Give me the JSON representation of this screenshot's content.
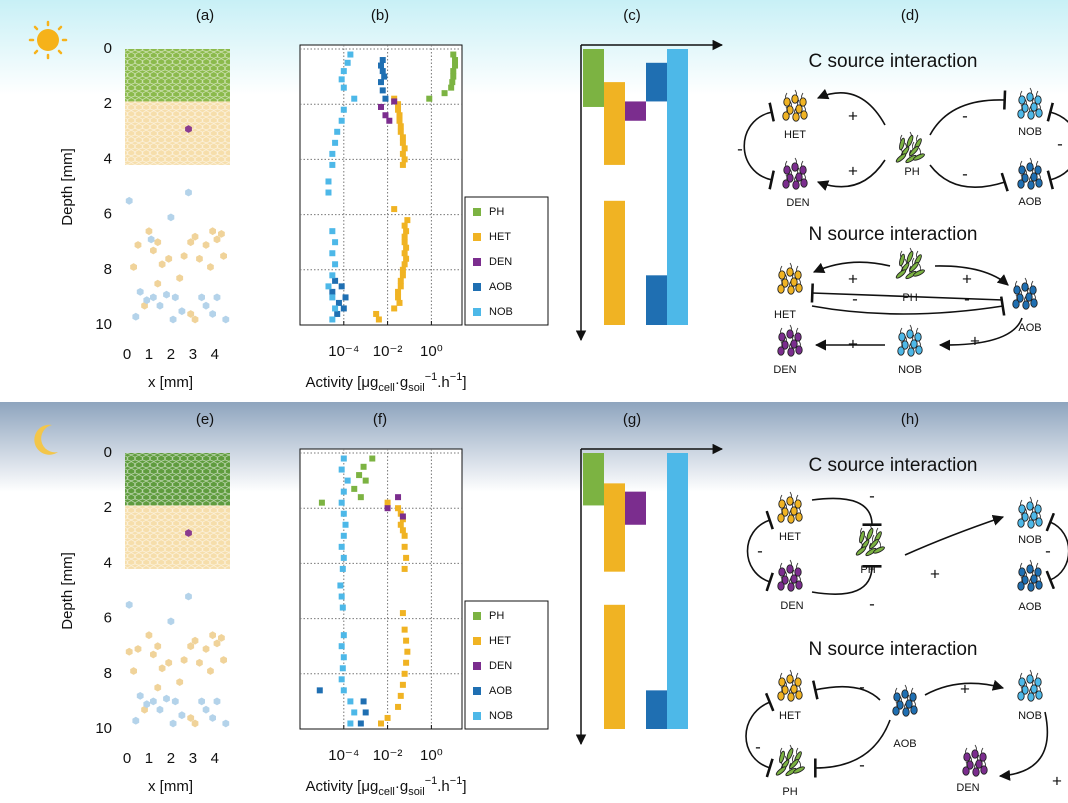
{
  "chart_data": [
    {
      "type": "hexmap",
      "title": "(a)",
      "xlabel": "x [mm]",
      "ylabel": "Depth [mm]",
      "xlim": [
        0,
        4.6
      ],
      "ylim": [
        0,
        10
      ],
      "y_inverted": true,
      "xticks": [
        0,
        1,
        2,
        3,
        4
      ],
      "yticks": [
        0,
        2,
        4,
        6,
        8,
        10
      ],
      "zones": [
        {
          "color": "#8bba4c",
          "from": 0,
          "to": 1.9
        },
        {
          "color": "#f6deab",
          "from": 1.9,
          "to": 4.2
        }
      ],
      "series": [
        {
          "color": "#f0d39a",
          "x": [
            0.3,
            0.5,
            1.0,
            1.2,
            1.4,
            1.6,
            1.9,
            2.4,
            2.6,
            2.9,
            3.1,
            3.3,
            3.6,
            3.9,
            4.1,
            4.3,
            4.4,
            3.8,
            2.9,
            3.1,
            1.4,
            0.8
          ],
          "y": [
            7.9,
            7.1,
            6.6,
            7.3,
            7.0,
            7.8,
            7.6,
            8.3,
            7.5,
            7.0,
            6.8,
            7.6,
            7.1,
            6.6,
            6.9,
            6.7,
            7.5,
            7.9,
            9.6,
            9.8,
            8.5,
            9.3
          ]
        },
        {
          "color": "#b4d3ea",
          "x": [
            0.1,
            0.6,
            0.9,
            1.2,
            1.5,
            1.8,
            2.2,
            2.5,
            3.4,
            3.6,
            3.9,
            4.1,
            0.4,
            2.8,
            2.1,
            4.5,
            2.0,
            1.1
          ],
          "y": [
            5.5,
            8.8,
            9.1,
            9.0,
            9.3,
            8.9,
            9.0,
            9.5,
            9.0,
            9.3,
            9.6,
            9.0,
            9.7,
            5.2,
            9.8,
            9.8,
            6.1,
            6.9
          ]
        },
        {
          "color": "#8a3b8f",
          "x": [
            2.8
          ],
          "y": [
            2.9
          ]
        }
      ]
    },
    {
      "type": "scatter",
      "title": "(b)",
      "xlabel": [
        "Activity [μg",
        "cell",
        "·g",
        "soil",
        "−1",
        ".h",
        "−1",
        "]"
      ],
      "xscale": "log",
      "xlim": [
        1e-06,
        25
      ],
      "ylim": [
        0,
        10
      ],
      "y_inverted": true,
      "xticks": [
        {
          "value": 0.0001,
          "label": "10⁻⁴"
        },
        {
          "value": 0.01,
          "label": "10⁻²"
        },
        {
          "value": 1,
          "label": "10⁰"
        }
      ],
      "yticks": [
        0,
        2,
        4,
        6,
        8,
        10
      ],
      "show_ytick_labels": false,
      "grid": true,
      "legend": "right",
      "series": [
        {
          "name": "PH",
          "color": "#7cb342",
          "x": [
            10,
            12,
            12,
            10,
            10,
            9,
            8,
            4,
            0.8
          ],
          "y": [
            0.2,
            0.4,
            0.6,
            0.8,
            1.0,
            1.2,
            1.4,
            1.6,
            1.8
          ]
        },
        {
          "name": "HET",
          "color": "#f0b323",
          "x": [
            0.02,
            0.03,
            0.03,
            0.035,
            0.035,
            0.04,
            0.04,
            0.05,
            0.05,
            0.06,
            0.05,
            0.06,
            0.05,
            0.02,
            0.08,
            0.06,
            0.07,
            0.06,
            0.06,
            0.07,
            0.06,
            0.07,
            0.06,
            0.05,
            0.05,
            0.04,
            0.04,
            0.03,
            0.03,
            0.035,
            0.02,
            0.003,
            0.004
          ],
          "y": [
            1.8,
            2.0,
            2.2,
            2.4,
            2.6,
            2.8,
            3.0,
            3.2,
            3.4,
            3.6,
            3.8,
            4.0,
            4.2,
            5.8,
            6.2,
            6.4,
            6.6,
            6.8,
            7.0,
            7.2,
            7.4,
            7.6,
            7.8,
            8.0,
            8.2,
            8.4,
            8.6,
            8.8,
            9.0,
            9.2,
            9.4,
            9.6,
            9.8
          ]
        },
        {
          "name": "DEN",
          "color": "#7b2d8e",
          "x": [
            0.02,
            0.005,
            0.008,
            0.012
          ],
          "y": [
            1.9,
            2.1,
            2.4,
            2.6
          ]
        },
        {
          "name": "AOB",
          "color": "#1f6fb2",
          "x": [
            0.006,
            0.005,
            0.006,
            0.007,
            0.005,
            0.006,
            0.008,
            4e-05,
            8e-05,
            3e-05,
            0.00012,
            6e-05,
            0.0001,
            5e-05
          ],
          "y": [
            0.4,
            0.6,
            0.8,
            1.0,
            1.2,
            1.5,
            1.8,
            8.4,
            8.6,
            8.8,
            9.0,
            9.2,
            9.4,
            9.6
          ]
        },
        {
          "name": "NOB",
          "color": "#4db8e8",
          "x": [
            0.0002,
            0.00015,
            0.0001,
            8e-05,
            0.0001,
            0.0003,
            0.0001,
            8e-05,
            5e-05,
            4e-05,
            3e-05,
            3e-05,
            2e-05,
            2e-05,
            3e-05,
            4e-05,
            3e-05,
            4e-05,
            3e-05,
            2e-05,
            3e-05,
            4e-05,
            3e-05
          ],
          "y": [
            0.2,
            0.5,
            0.8,
            1.1,
            1.4,
            1.8,
            2.2,
            2.6,
            3.0,
            3.4,
            3.8,
            4.2,
            4.8,
            5.2,
            6.6,
            7.0,
            7.4,
            7.8,
            8.2,
            8.6,
            9.0,
            9.4,
            9.8
          ]
        }
      ]
    },
    {
      "type": "range",
      "title": "(c)",
      "ylim": [
        0,
        10
      ],
      "y_inverted": true,
      "series": [
        {
          "color": "#7cb342",
          "ranges": [
            [
              0,
              2.1
            ]
          ]
        },
        {
          "color": "#f0b323",
          "ranges": [
            [
              1.2,
              4.2
            ],
            [
              5.5,
              10
            ]
          ]
        },
        {
          "color": "#7b2d8e",
          "ranges": [
            [
              1.9,
              2.6
            ]
          ]
        },
        {
          "color": "#1f6fb2",
          "ranges": [
            [
              0.5,
              1.9
            ],
            [
              8.2,
              10
            ]
          ]
        },
        {
          "color": "#4db8e8",
          "ranges": [
            [
              0,
              10
            ]
          ]
        }
      ]
    },
    {
      "type": "hexmap",
      "title": "(e)",
      "xlabel": "x [mm]",
      "ylabel": "Depth [mm]",
      "xlim": [
        0,
        4.6
      ],
      "ylim": [
        0,
        10
      ],
      "y_inverted": true,
      "xticks": [
        0,
        1,
        2,
        3,
        4
      ],
      "yticks": [
        0,
        2,
        4,
        6,
        8,
        10
      ],
      "zones": [
        {
          "color": "#5f9c3e",
          "from": 0,
          "to": 1.9
        },
        {
          "color": "#f6deab",
          "from": 1.9,
          "to": 4.2
        }
      ],
      "series": [
        {
          "color": "#f0d39a",
          "x": [
            0.3,
            0.5,
            1.0,
            1.2,
            1.4,
            1.6,
            1.9,
            2.4,
            2.6,
            2.9,
            3.1,
            3.3,
            3.6,
            3.9,
            4.1,
            4.3,
            4.4,
            3.8,
            2.9,
            3.1,
            1.4,
            0.8,
            0.1
          ],
          "y": [
            7.9,
            7.1,
            6.6,
            7.3,
            7.0,
            7.8,
            7.6,
            8.3,
            7.5,
            7.0,
            6.8,
            7.6,
            7.1,
            6.6,
            6.9,
            6.7,
            7.5,
            7.9,
            9.6,
            9.8,
            8.5,
            9.3,
            7.2
          ]
        },
        {
          "color": "#b4d3ea",
          "x": [
            0.1,
            0.6,
            0.9,
            1.2,
            1.5,
            1.8,
            2.2,
            2.5,
            3.4,
            3.6,
            3.9,
            4.1,
            0.4,
            2.8,
            2.1,
            4.5,
            2.0
          ],
          "y": [
            5.5,
            8.8,
            9.1,
            9.0,
            9.3,
            8.9,
            9.0,
            9.5,
            9.0,
            9.3,
            9.6,
            9.0,
            9.7,
            5.2,
            9.8,
            9.8,
            6.1
          ]
        },
        {
          "color": "#8a3b8f",
          "x": [
            2.8
          ],
          "y": [
            2.9
          ]
        }
      ]
    },
    {
      "type": "scatter",
      "title": "(f)",
      "xlabel": [
        "Activity [μg",
        "cell",
        "·g",
        "soil",
        "−1",
        ".h",
        "−1",
        "]"
      ],
      "xscale": "log",
      "xlim": [
        1e-06,
        25
      ],
      "ylim": [
        0,
        10
      ],
      "y_inverted": true,
      "xticks": [
        {
          "value": 0.0001,
          "label": "10⁻⁴"
        },
        {
          "value": 0.01,
          "label": "10⁻²"
        },
        {
          "value": 1,
          "label": "10⁰"
        }
      ],
      "yticks": [
        0,
        2,
        4,
        6,
        8,
        10
      ],
      "show_ytick_labels": false,
      "grid": true,
      "legend": "right",
      "series": [
        {
          "name": "PH",
          "color": "#7cb342",
          "x": [
            0.002,
            0.0008,
            0.0005,
            0.001,
            0.0003,
            0.0006,
            1e-05
          ],
          "y": [
            0.2,
            0.5,
            0.8,
            1.0,
            1.3,
            1.6,
            1.8
          ]
        },
        {
          "name": "HET",
          "color": "#f0b323",
          "x": [
            0.01,
            0.03,
            0.04,
            0.05,
            0.04,
            0.05,
            0.06,
            0.06,
            0.07,
            0.06,
            0.05,
            0.06,
            0.07,
            0.08,
            0.07,
            0.06,
            0.05,
            0.04,
            0.03,
            0.01,
            0.005
          ],
          "y": [
            1.8,
            2.0,
            2.2,
            2.4,
            2.6,
            2.8,
            3.0,
            3.4,
            3.8,
            4.2,
            5.8,
            6.4,
            6.8,
            7.2,
            7.6,
            8.0,
            8.4,
            8.8,
            9.2,
            9.6,
            9.8
          ]
        },
        {
          "name": "DEN",
          "color": "#7b2d8e",
          "x": [
            0.03,
            0.01,
            0.05
          ],
          "y": [
            1.6,
            2.0,
            2.3
          ]
        },
        {
          "name": "AOB",
          "color": "#1f6fb2",
          "x": [
            8e-06,
            0.0008,
            0.001,
            0.0006
          ],
          "y": [
            8.6,
            9.0,
            9.4,
            9.8
          ]
        },
        {
          "name": "NOB",
          "color": "#4db8e8",
          "x": [
            0.0001,
            8e-05,
            0.00015,
            0.0001,
            8e-05,
            0.0001,
            0.00012,
            0.0001,
            8e-05,
            0.0001,
            9e-05,
            7e-05,
            8e-05,
            9e-05,
            0.0001,
            8e-05,
            0.0001,
            9e-05,
            8e-05,
            0.0001,
            0.0002,
            0.0003,
            0.0002
          ],
          "y": [
            0.2,
            0.6,
            1.0,
            1.4,
            1.8,
            2.2,
            2.6,
            3.0,
            3.4,
            3.8,
            4.2,
            4.8,
            5.2,
            5.6,
            6.6,
            7.0,
            7.4,
            7.8,
            8.2,
            8.6,
            9.0,
            9.4,
            9.8
          ]
        }
      ]
    },
    {
      "type": "range",
      "title": "(g)",
      "ylim": [
        0,
        10
      ],
      "y_inverted": true,
      "series": [
        {
          "color": "#7cb342",
          "ranges": [
            [
              0,
              1.9
            ]
          ]
        },
        {
          "color": "#f0b323",
          "ranges": [
            [
              1.1,
              4.3
            ],
            [
              5.5,
              10
            ]
          ]
        },
        {
          "color": "#7b2d8e",
          "ranges": [
            [
              1.4,
              2.6
            ]
          ]
        },
        {
          "color": "#1f6fb2",
          "ranges": [
            [
              8.6,
              10
            ]
          ]
        },
        {
          "color": "#4db8e8",
          "ranges": [
            [
              0,
              10
            ]
          ]
        }
      ]
    }
  ],
  "diagrams": [
    {
      "label": "(d)",
      "sections": [
        {
          "title": "C source interaction",
          "nodes": [
            "HET",
            "DEN",
            "PH",
            "NOB",
            "AOB"
          ],
          "signs": [
            "+",
            "+",
            "-",
            "-",
            "-",
            "-"
          ]
        },
        {
          "title": "N source interaction",
          "nodes": [
            "HET",
            "PH",
            "AOB",
            "DEN",
            "NOB"
          ],
          "signs": [
            "+",
            "+",
            "-",
            "-",
            "+",
            "+"
          ]
        }
      ]
    },
    {
      "label": "(h)",
      "sections": [
        {
          "title": "C source interaction",
          "nodes": [
            "HET",
            "PH",
            "DEN",
            "NOB",
            "AOB"
          ],
          "signs": [
            "-",
            "-",
            "-",
            "+",
            "-"
          ]
        },
        {
          "title": "N source interaction",
          "nodes": [
            "HET",
            "AOB",
            "NOB",
            "PH",
            "DEN"
          ],
          "signs": [
            "-",
            "+",
            "-",
            "-",
            "+"
          ]
        }
      ]
    }
  ]
}
